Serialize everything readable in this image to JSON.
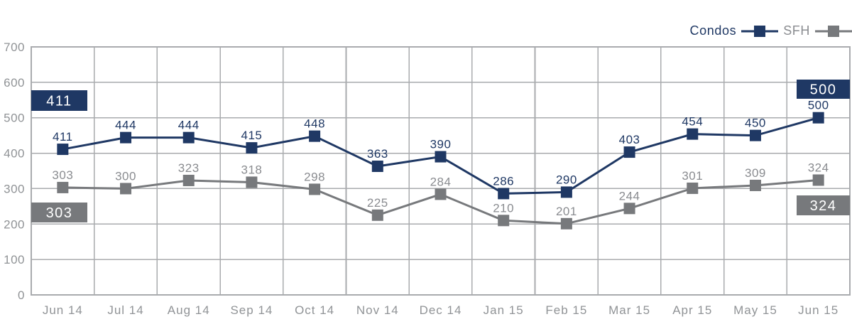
{
  "chart_data": {
    "type": "line",
    "categories": [
      "Jun 14",
      "Jul 14",
      "Aug 14",
      "Sep 14",
      "Oct 14",
      "Nov 14",
      "Dec 14",
      "Jan 15",
      "Feb 15",
      "Mar 15",
      "Apr 15",
      "May 15",
      "Jun 15"
    ],
    "series": [
      {
        "name": "Condos",
        "color": "#1f3864",
        "label_color": "#1f3864",
        "values": [
          411,
          444,
          444,
          415,
          448,
          363,
          390,
          286,
          290,
          403,
          454,
          450,
          500
        ]
      },
      {
        "name": "SFH",
        "color": "#77797c",
        "label_color": "#8a8c90",
        "values": [
          303,
          300,
          323,
          318,
          298,
          225,
          284,
          210,
          201,
          244,
          301,
          309,
          324
        ]
      }
    ],
    "ylim": [
      0,
      700
    ],
    "ytick_step": 100,
    "yticks": [
      0,
      100,
      200,
      300,
      400,
      500,
      600,
      700
    ],
    "grid": true,
    "legend_position": "top-right",
    "data_labels": true,
    "callouts": [
      {
        "side": "left",
        "series": "Condos",
        "label": "411"
      },
      {
        "side": "left",
        "series": "SFH",
        "label": "303"
      },
      {
        "side": "right",
        "series": "Condos",
        "label": "500"
      },
      {
        "side": "right",
        "series": "SFH",
        "label": "324"
      }
    ]
  },
  "colors": {
    "background": "#ffffff",
    "gridline": "#a9abae",
    "axis_text": "#909396",
    "callout_text": "#ffffff"
  }
}
